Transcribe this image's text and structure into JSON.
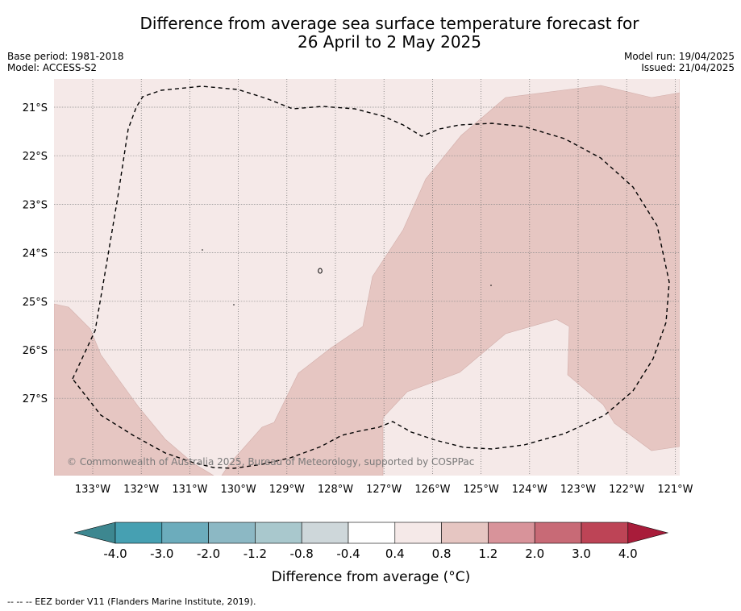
{
  "header": {
    "title_line1": "Difference from average sea surface temperature forecast for",
    "title_line2": "26 April to 2 May 2025",
    "base_period": "Base period: 1981-2018",
    "model": "Model: ACCESS-S2",
    "model_run": "Model run: 19/04/2025",
    "issued": "Issued: 21/04/2025"
  },
  "map": {
    "lat_labels": [
      "21°S",
      "22°S",
      "23°S",
      "24°S",
      "25°S",
      "26°S",
      "27°S"
    ],
    "lon_labels": [
      "133°W",
      "132°W",
      "131°W",
      "130°W",
      "129°W",
      "128°W",
      "127°W",
      "126°W",
      "125°W",
      "124°W",
      "123°W",
      "122°W",
      "121°W"
    ],
    "copyright": "© Commonwealth of Australia 2025, Bureau of Meteorology, supported by COSPPac",
    "colors": {
      "anomaly_0_4_to_0_8": "#f5e9e8",
      "anomaly_0_8_to_1_2": "#e6c6c2",
      "eez_border": "#000000"
    }
  },
  "colorbar": {
    "title": "Difference from average (°C)",
    "tick_labels": [
      "-4.0",
      "-3.0",
      "-2.0",
      "-1.2",
      "-0.8",
      "-0.4",
      "0.4",
      "0.8",
      "1.2",
      "2.0",
      "3.0",
      "4.0"
    ],
    "colors": [
      "#3d8790",
      "#46a0b2",
      "#6cacbc",
      "#8cb8c4",
      "#a9c8cd",
      "#ced7da",
      "#ffffff",
      "#f5e9e8",
      "#e6c6c2",
      "#d8939a",
      "#c86a76",
      "#bd4456",
      "#a81c3a"
    ]
  },
  "footer": {
    "legend_text": "--  --  -- EEZ border V11 (Flanders Marine Institute, 2019)."
  }
}
